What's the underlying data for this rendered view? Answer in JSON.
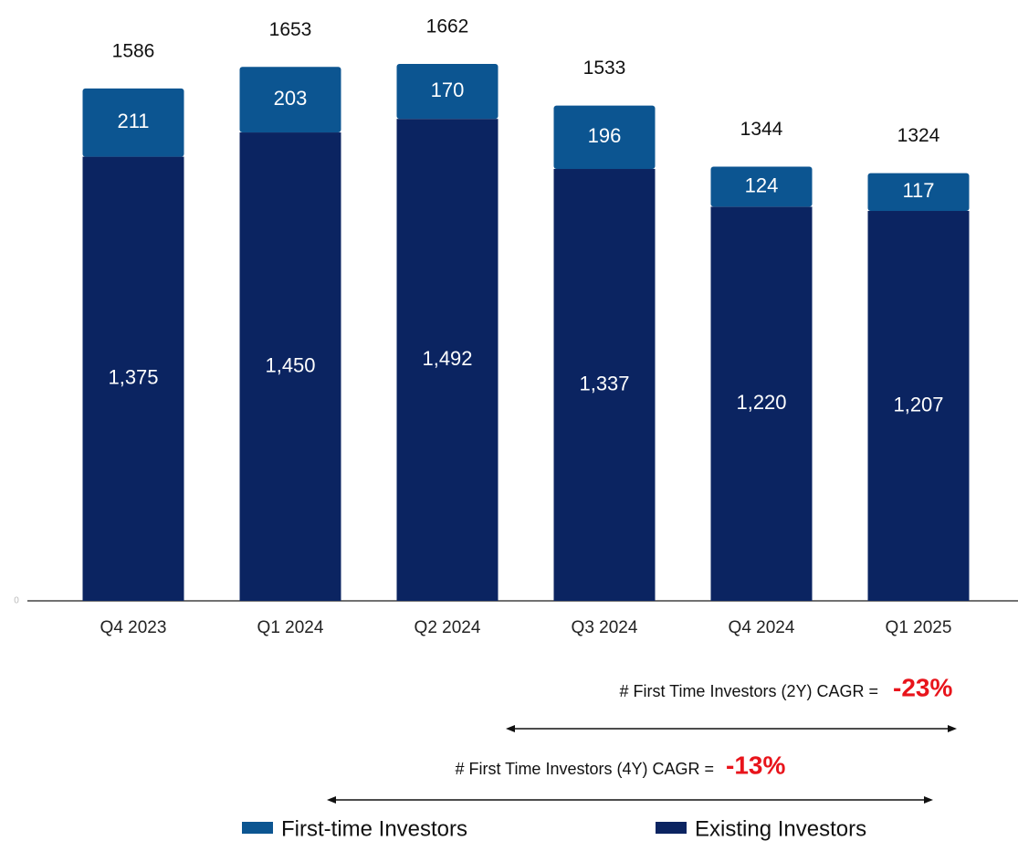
{
  "chart_data": {
    "type": "stacked_bar",
    "categories": [
      "Q4 2023",
      "Q1 2024",
      "Q2 2024",
      "Q3 2024",
      "Q4 2024",
      "Q1 2025"
    ],
    "series": [
      {
        "name": "Existing Investors",
        "color": "#0b2461",
        "values": [
          1375,
          1450,
          1492,
          1337,
          1220,
          1207
        ],
        "value_labels": [
          "1,375",
          "1,450",
          "1,492",
          "1,337",
          "1,220",
          "1,207"
        ]
      },
      {
        "name": "First-time Investors",
        "color": "#0c5591",
        "values": [
          211,
          203,
          170,
          196,
          124,
          117
        ]
      }
    ],
    "totals": [
      1586,
      1653,
      1662,
      1533,
      1344,
      1324
    ],
    "ylim": [
      0,
      1860
    ],
    "yticks": [
      0
    ],
    "annotations": [
      {
        "text": "# First Time Investors (2Y) CAGR =",
        "value_label": "-23%"
      },
      {
        "text": "# First Time Investors (4Y) CAGR =",
        "value_label": "-13%"
      }
    ]
  }
}
